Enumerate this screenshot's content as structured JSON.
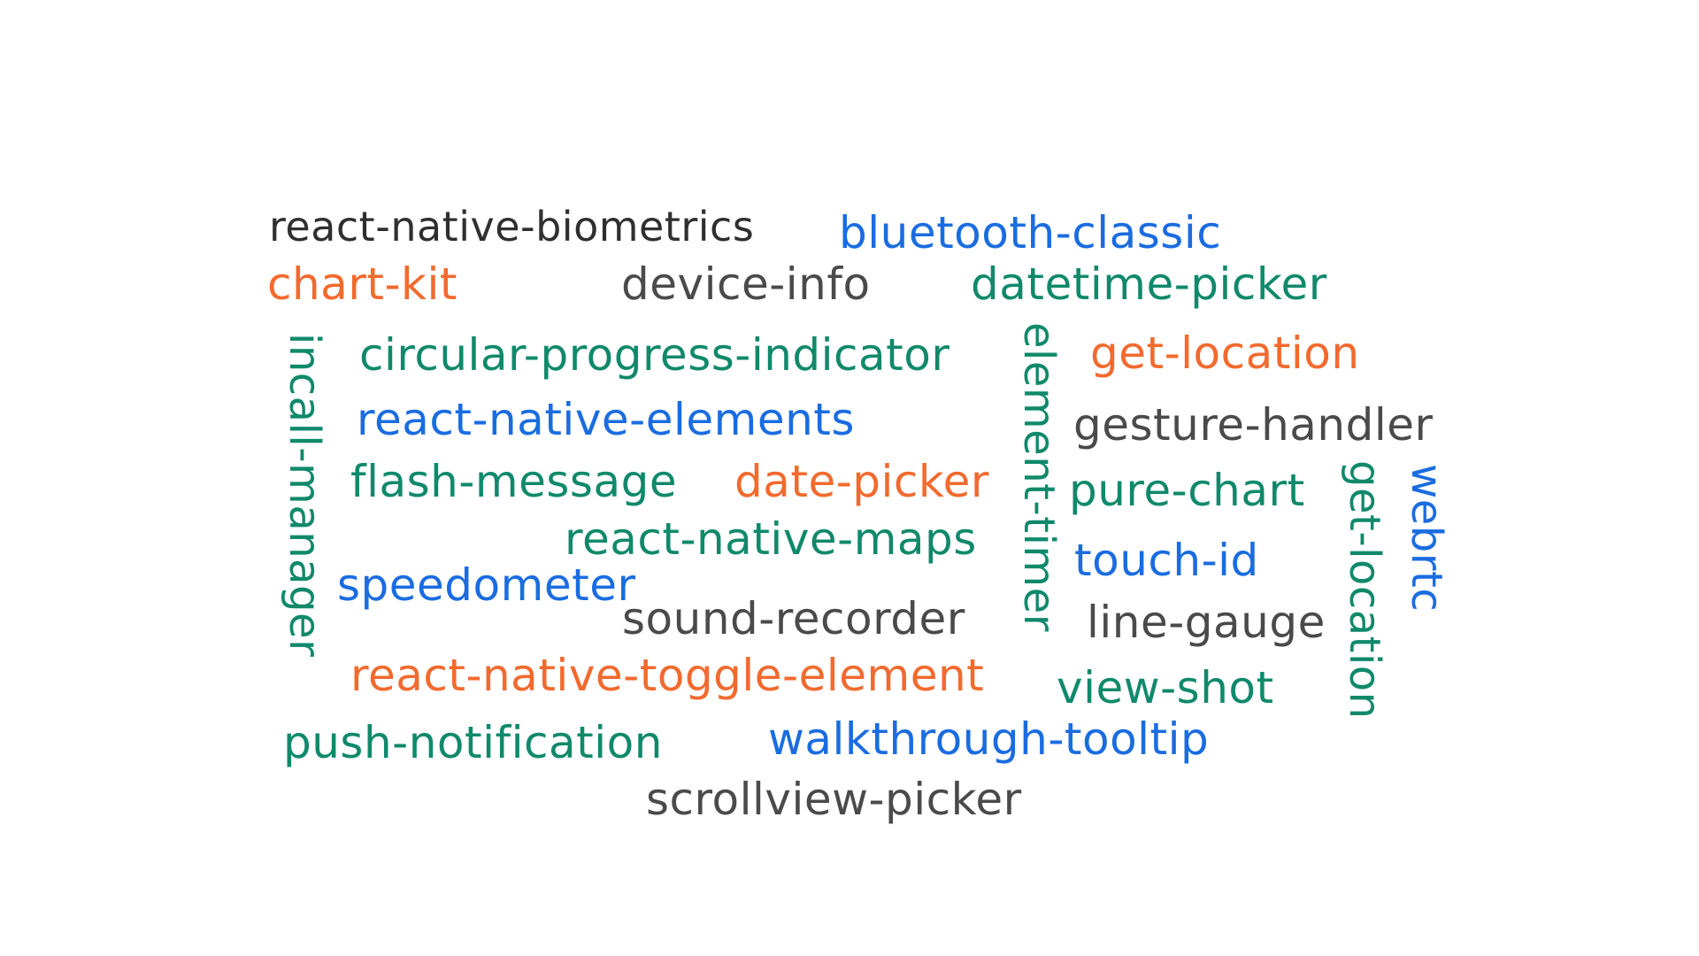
{
  "colors": {
    "green": "#10896b",
    "blue": "#1a6ce0",
    "orange": "#f26a2e",
    "gray": "#4a4a4a",
    "dark": "#2f2f2f"
  },
  "words": {
    "biometrics": "react-native-biometrics",
    "bluetooth_classic": "bluetooth-classic",
    "chart_kit": "chart-kit",
    "device_info": "device-info",
    "datetime_picker": "datetime-picker",
    "incall_manager": "incall-manager",
    "circular_progress_indicator": "circular-progress-indicator",
    "element_timer": "element-timer",
    "get_location_1": "get-location",
    "react_native_elements": "react-native-elements",
    "gesture_handler": "gesture-handler",
    "flash_message": "flash-message",
    "date_picker": "date-picker",
    "pure_chart": "pure-chart",
    "get_location_2": "get-location",
    "webrtc": "webrtc",
    "react_native_maps": "react-native-maps",
    "touch_id": "touch-id",
    "speedometer": "speedometer",
    "sound_recorder": "sound-recorder",
    "line_gauge": "line-gauge",
    "toggle_element": "react-native-toggle-element",
    "view_shot": "view-shot",
    "push_notification": "push-notification",
    "walkthrough_tooltip": "walkthrough-tooltip",
    "scrollview_picker": "scrollview-picker"
  }
}
